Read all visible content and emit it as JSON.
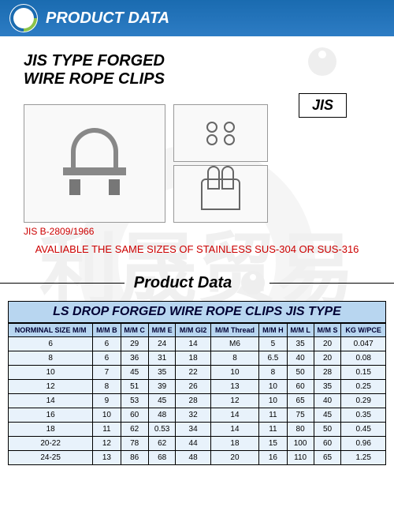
{
  "header": {
    "title": "PRODUCT DATA"
  },
  "product": {
    "title_line1": "JIS TYPE FORGED",
    "title_line2": "WIRE ROPE CLIPS",
    "jis_badge": "JIS",
    "jis_code": "JIS B-2809/1966",
    "availability": "AVALIABLE THE SAME SIZES OF STAINLESS SUS-304 OR SUS-316"
  },
  "section": {
    "title": "Product Data"
  },
  "table": {
    "title": "LS DROP FORGED WIRE ROPE CLIPS JIS TYPE",
    "columns": [
      "NORMINAL SIZE M/M",
      "M/M B",
      "M/M C",
      "M/M E",
      "M/M GI2",
      "M/M Thread",
      "M/M H",
      "M/M L",
      "M/M S",
      "KG W/PCE"
    ],
    "rows": [
      [
        "6",
        "6",
        "29",
        "24",
        "14",
        "M6",
        "5",
        "35",
        "20",
        "0.047"
      ],
      [
        "8",
        "6",
        "36",
        "31",
        "18",
        "8",
        "6.5",
        "40",
        "20",
        "0.08"
      ],
      [
        "10",
        "7",
        "45",
        "35",
        "22",
        "10",
        "8",
        "50",
        "28",
        "0.15"
      ],
      [
        "12",
        "8",
        "51",
        "39",
        "26",
        "13",
        "10",
        "60",
        "35",
        "0.25"
      ],
      [
        "14",
        "9",
        "53",
        "45",
        "28",
        "12",
        "10",
        "65",
        "40",
        "0.29"
      ],
      [
        "16",
        "10",
        "60",
        "48",
        "32",
        "14",
        "11",
        "75",
        "45",
        "0.35"
      ],
      [
        "18",
        "11",
        "62",
        "0.53",
        "34",
        "14",
        "11",
        "80",
        "50",
        "0.45"
      ],
      [
        "20-22",
        "12",
        "78",
        "62",
        "44",
        "18",
        "15",
        "100",
        "60",
        "0.96"
      ],
      [
        "24-25",
        "13",
        "86",
        "68",
        "48",
        "20",
        "16",
        "110",
        "65",
        "1.25"
      ]
    ]
  },
  "colors": {
    "header_bg": "#1a6bb0",
    "table_header_bg": "#b8d6f0",
    "table_cell_bg": "#e8f2fb",
    "red_text": "#c00",
    "border": "#000"
  }
}
